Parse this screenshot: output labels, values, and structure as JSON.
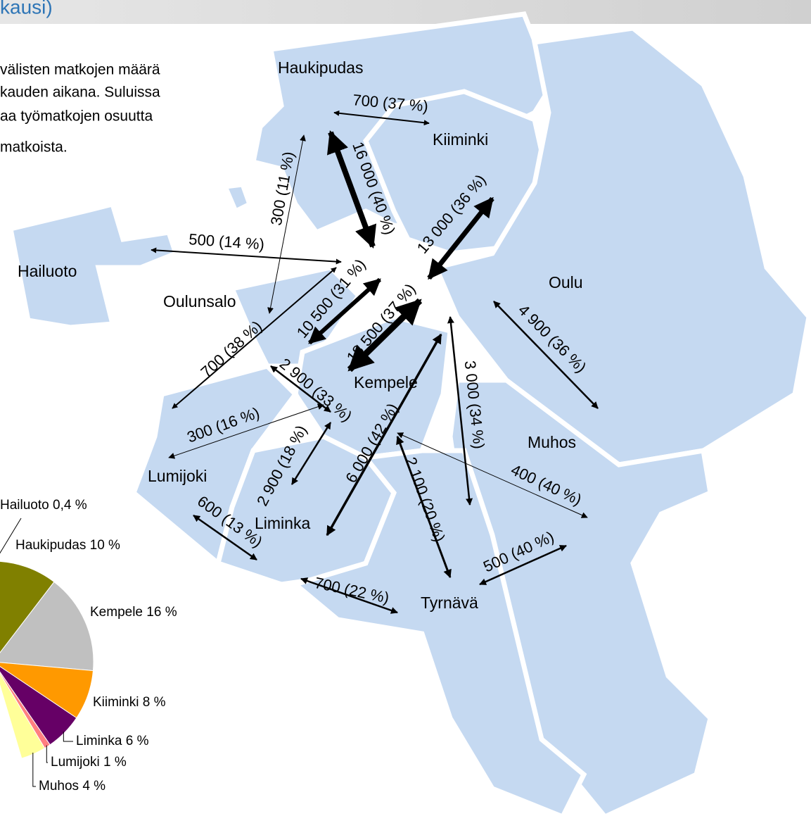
{
  "header": {
    "title": "kausi)"
  },
  "description": [
    "välisten matkojen määrä",
    "kauden aikana. Suluissa",
    "aa työmatkojen osuutta",
    "matkoista."
  ],
  "places": [
    "Haukipudas",
    "Kiiminki",
    "Hailuoto",
    "Oulu",
    "Oulunsalo",
    "Kempele",
    "Muhos",
    "Lumijoki",
    "Liminka",
    "Tyrnävä"
  ],
  "flows": [
    "700 (37 %)",
    "16 000 (40 %)",
    "300 (11 %)",
    "500 (14 %)",
    "13 000 (36 %)",
    "10 500 (31 %)",
    "18 500 (37 %)",
    "700 (38 %)",
    "2 900 (33 %)",
    "3 000 (34 %)",
    "4 900 (36 %)",
    "300 (16 %)",
    "2 900 (18 %)",
    "6 000 (42 %)",
    "400 (40 %)",
    "2 100 (20 %)",
    "600 (13 %)",
    "700 (22 %)",
    "500 (40 %)"
  ],
  "chart_data": {
    "type": "pie",
    "categories": [
      "Hailuoto",
      "Haukipudas",
      "Kempele",
      "Kiiminki",
      "Liminka",
      "Lumijoki",
      "Muhos"
    ],
    "values": [
      0.4,
      10,
      16,
      8,
      6,
      1,
      4
    ],
    "value_labels": [
      "0,4 %",
      "10 %",
      "16 %",
      "8 %",
      "6 %",
      "1 %",
      "4 %"
    ],
    "colors": [
      "#4f81bd",
      "#808000",
      "#c0c0c0",
      "#ff9900",
      "#660066",
      "#ff8080",
      "#ffff99"
    ]
  }
}
